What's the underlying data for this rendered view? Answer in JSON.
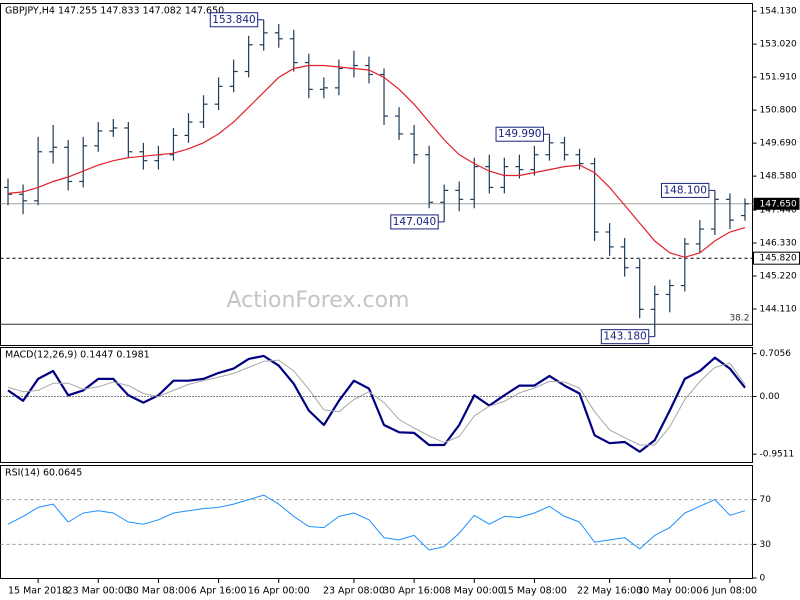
{
  "chart_data": [
    {
      "type": "ohlc",
      "title": "GBPJPY,H4  147.255 147.833 147.082 147.650",
      "watermark": "ActionForex.com",
      "color": "#1f3b57",
      "open": [
        148.2,
        147.97,
        147.75,
        149.4,
        149.55,
        148.4,
        149.6,
        150.1,
        150.2,
        149.4,
        149.1,
        149.3,
        149.95,
        150.4,
        151.0,
        151.6,
        152.1,
        153.0,
        153.4,
        153.2,
        152.4,
        151.5,
        151.55,
        152.2,
        152.3,
        152.0,
        150.6,
        150.0,
        149.3,
        147.7,
        148.1,
        147.8,
        148.9,
        148.2,
        148.9,
        148.8,
        149.3,
        149.7,
        149.3,
        149.0,
        146.7,
        146.2,
        145.5,
        144.1,
        144.6,
        144.9,
        146.3,
        146.8,
        147.8,
        147.255
      ],
      "high": [
        148.5,
        148.3,
        149.9,
        150.3,
        149.8,
        149.9,
        150.4,
        150.5,
        150.4,
        149.7,
        149.6,
        150.2,
        150.7,
        151.3,
        151.9,
        152.5,
        153.3,
        153.84,
        153.7,
        153.5,
        152.7,
        151.9,
        152.5,
        152.8,
        152.6,
        152.2,
        150.9,
        150.3,
        149.6,
        148.3,
        148.4,
        149.2,
        149.3,
        149.2,
        149.3,
        149.6,
        149.99,
        149.9,
        149.5,
        149.2,
        147.0,
        146.5,
        145.8,
        144.9,
        145.1,
        146.5,
        147.1,
        148.1,
        148.0,
        147.833
      ],
      "low": [
        147.6,
        147.3,
        147.6,
        149.0,
        148.1,
        148.2,
        149.4,
        149.9,
        149.2,
        148.8,
        148.8,
        149.1,
        149.7,
        150.2,
        150.8,
        151.4,
        151.9,
        152.8,
        152.9,
        152.1,
        151.2,
        151.2,
        151.3,
        151.9,
        151.7,
        150.3,
        149.8,
        149.0,
        147.5,
        147.04,
        147.4,
        147.5,
        148.0,
        148.0,
        148.5,
        148.6,
        149.1,
        149.1,
        148.8,
        146.4,
        145.9,
        145.2,
        143.8,
        143.18,
        144.0,
        144.7,
        146.0,
        146.6,
        146.8,
        147.082
      ],
      "close": [
        147.97,
        147.75,
        149.4,
        149.55,
        148.4,
        149.6,
        150.1,
        150.2,
        149.4,
        149.1,
        149.3,
        149.95,
        150.4,
        151.0,
        151.6,
        152.1,
        153.0,
        153.4,
        153.2,
        152.4,
        151.5,
        151.55,
        152.2,
        152.3,
        152.0,
        150.6,
        150.0,
        149.3,
        147.7,
        148.1,
        147.8,
        148.9,
        148.2,
        148.9,
        148.8,
        149.3,
        149.7,
        149.3,
        149.0,
        146.7,
        146.2,
        145.5,
        144.1,
        144.6,
        144.9,
        146.3,
        146.8,
        147.8,
        147.1,
        147.65
      ],
      "ma": {
        "color": "#e0202a",
        "values": [
          148.0,
          148.05,
          148.2,
          148.4,
          148.55,
          148.75,
          148.95,
          149.1,
          149.2,
          149.25,
          149.3,
          149.35,
          149.5,
          149.7,
          150.0,
          150.4,
          150.9,
          151.4,
          151.9,
          152.2,
          152.3,
          152.3,
          152.25,
          152.2,
          152.15,
          151.9,
          151.5,
          151.0,
          150.4,
          149.8,
          149.3,
          149.0,
          148.75,
          148.6,
          148.6,
          148.7,
          148.8,
          148.9,
          148.95,
          148.7,
          148.2,
          147.6,
          147.0,
          146.4,
          146.0,
          145.85,
          146.0,
          146.4,
          146.7,
          146.85
        ]
      },
      "extremes": [
        {
          "value": 153.84,
          "label": "153.840"
        },
        {
          "value": 149.99,
          "label": "149.990"
        },
        {
          "value": 148.1,
          "label": "148.100"
        },
        {
          "value": 147.04,
          "label": "147.040"
        },
        {
          "value": 143.18,
          "label": "143.180"
        }
      ],
      "last_price": {
        "value": 147.65,
        "label": "147.650"
      },
      "support": {
        "value": 145.82,
        "label": "145.820"
      },
      "fibo": {
        "price": 143.6,
        "level": 38.2
      },
      "ylim": [
        142.9,
        154.37
      ],
      "yticks": [
        {
          "value": 154.13,
          "label": "154.130"
        },
        {
          "value": 153.02,
          "label": "153.020"
        },
        {
          "value": 151.91,
          "label": "151.910"
        },
        {
          "value": 150.8,
          "label": "150.800"
        },
        {
          "value": 149.69,
          "label": "149.690"
        },
        {
          "value": 148.58,
          "label": "148.580"
        },
        {
          "value": 147.44,
          "label": "147.440"
        },
        {
          "value": 146.33,
          "label": "146.330"
        },
        {
          "value": 145.22,
          "label": "145.220"
        },
        {
          "value": 144.11,
          "label": "144.110"
        }
      ]
    },
    {
      "type": "line",
      "title": "MACD(12,26,9) 0.1447 0.1981",
      "series": [
        {
          "color": "#000080",
          "width": 2.2,
          "values": [
            0.1,
            -0.07,
            0.29,
            0.42,
            0.02,
            0.1,
            0.29,
            0.29,
            0.02,
            -0.1,
            0.02,
            0.26,
            0.26,
            0.29,
            0.39,
            0.46,
            0.62,
            0.67,
            0.51,
            0.21,
            -0.23,
            -0.47,
            -0.07,
            0.26,
            0.13,
            -0.47,
            -0.59,
            -0.6,
            -0.8,
            -0.8,
            -0.47,
            0.02,
            -0.15,
            0.02,
            0.18,
            0.18,
            0.34,
            0.18,
            0.05,
            -0.64,
            -0.77,
            -0.75,
            -0.91,
            -0.72,
            -0.23,
            0.29,
            0.42,
            0.64,
            0.46,
            0.1447
          ]
        },
        {
          "color": "#a8a8a8",
          "width": 1,
          "values": [
            0.15,
            0.08,
            0.1,
            0.22,
            0.22,
            0.12,
            0.16,
            0.24,
            0.18,
            0.05,
            0.0,
            0.1,
            0.2,
            0.26,
            0.32,
            0.38,
            0.48,
            0.58,
            0.6,
            0.42,
            0.12,
            -0.22,
            -0.25,
            -0.05,
            0.08,
            -0.1,
            -0.38,
            -0.52,
            -0.65,
            -0.76,
            -0.66,
            -0.32,
            -0.16,
            -0.08,
            0.06,
            0.14,
            0.25,
            0.24,
            0.14,
            -0.25,
            -0.55,
            -0.68,
            -0.8,
            -0.8,
            -0.5,
            -0.05,
            0.25,
            0.48,
            0.55,
            0.1981
          ]
        }
      ],
      "hlines": [
        0
      ],
      "ylim": [
        -1.08,
        0.8
      ],
      "yticks": [
        0.7056,
        {
          "value": 0,
          "label": "0.00"
        },
        -0.9511
      ]
    },
    {
      "type": "line",
      "title": "RSI(14) 60.0645",
      "series": [
        {
          "color": "#1e90ff",
          "width": 1,
          "values": [
            48,
            55,
            63,
            66,
            50,
            58,
            60,
            58,
            50,
            48,
            52,
            58,
            60,
            62,
            63,
            66,
            70,
            74,
            66,
            55,
            46,
            45,
            55,
            58,
            52,
            36,
            34,
            38,
            25,
            28,
            40,
            56,
            48,
            55,
            54,
            58,
            64,
            55,
            50,
            32,
            34,
            36,
            26,
            38,
            45,
            58,
            64,
            70,
            56,
            60.0645
          ]
        }
      ],
      "hlines": [
        70,
        30
      ],
      "ylim": [
        0,
        100
      ],
      "yticks": [
        70,
        30,
        0
      ],
      "categories": [
        null,
        null,
        "15 Mar 2018",
        null,
        null,
        null,
        "23 Mar 00:00",
        null,
        null,
        null,
        "30 Mar 08:00",
        null,
        null,
        null,
        "6 Apr 16:00",
        null,
        null,
        null,
        "16 Apr 00:00",
        null,
        null,
        null,
        null,
        "23 Apr 08:00",
        null,
        null,
        null,
        "30 Apr 16:00",
        null,
        null,
        null,
        "8 May 00:00",
        null,
        null,
        null,
        "15 May 08:00",
        null,
        null,
        null,
        null,
        "22 May 16:00",
        null,
        null,
        null,
        "30 May 00:00",
        null,
        null,
        null,
        "6 Jun 08:00",
        null
      ]
    }
  ]
}
